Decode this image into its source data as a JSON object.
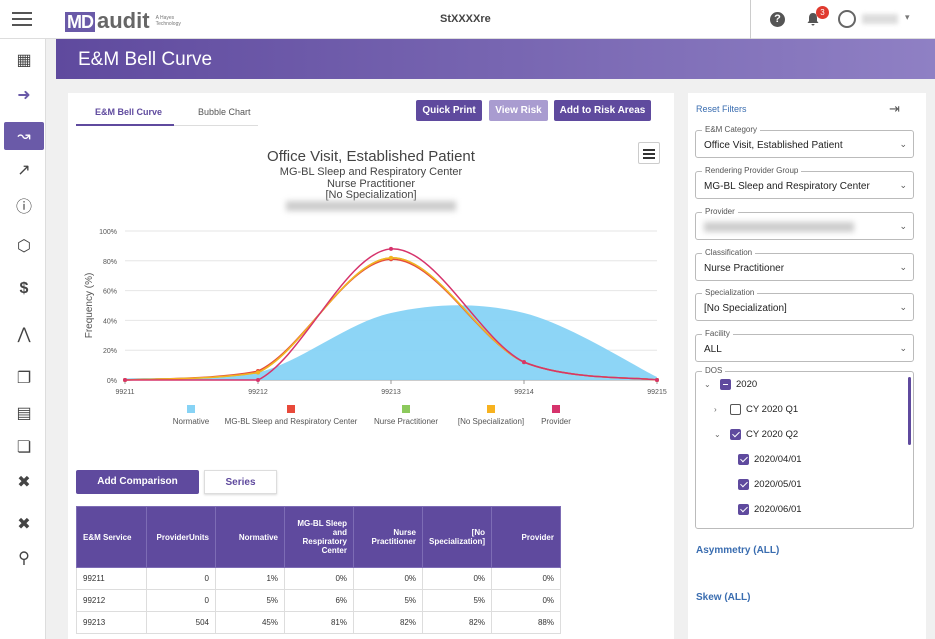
{
  "app": {
    "logo_md": "MD",
    "logo_audit": "audit",
    "logo_sub": "A Hayes Technology",
    "title": "StXXXXre",
    "notification_count": "3"
  },
  "page": {
    "title": "E&M Bell Curve"
  },
  "tabs": [
    {
      "label": "E&M Bell Curve"
    },
    {
      "label": "Bubble Chart"
    }
  ],
  "toolbar": {
    "quick_print": "Quick Print",
    "view_risk": "View Risk",
    "add_risk": "Add to Risk Areas"
  },
  "chart_data": {
    "type": "line",
    "title": "Office Visit, Established Patient",
    "subtitles": [
      "MG-BL Sleep and Respiratory Center",
      "Nurse Practitioner",
      "[No Specialization]"
    ],
    "ylabel": "Frequency (%)",
    "xlabel": "",
    "ylim": [
      0,
      100
    ],
    "yticks": [
      "0%",
      "20%",
      "40%",
      "60%",
      "80%",
      "100%"
    ],
    "categories": [
      "99211",
      "99212",
      "99213",
      "99214",
      "99215"
    ],
    "series": [
      {
        "name": "Normative",
        "type": "area",
        "color": "#87d3f5",
        "values": [
          1,
          5,
          45,
          45,
          2
        ]
      },
      {
        "name": "MG-BL Sleep and Respiratory Center",
        "color": "#e8493a",
        "values": [
          0,
          6,
          81,
          12,
          0
        ]
      },
      {
        "name": "Nurse Practitioner",
        "color": "#8cc95c",
        "values": [
          0,
          5,
          82,
          12,
          0
        ]
      },
      {
        "name": "[No Specialization]",
        "color": "#f7b21f",
        "values": [
          0,
          5,
          82,
          12,
          0
        ]
      },
      {
        "name": "Provider",
        "color": "#d6336c",
        "values": [
          0,
          0,
          88,
          12,
          0
        ]
      }
    ]
  },
  "buttons": {
    "add_comparison": "Add Comparison",
    "series": "Series"
  },
  "table": {
    "headers": [
      "E&M Service",
      "ProviderUnits",
      "Normative",
      "MG-BL Sleep and Respiratory Center",
      "Nurse Practitioner",
      "[No Specialization]",
      "Provider"
    ],
    "rows": [
      [
        "99211",
        "0",
        "1%",
        "0%",
        "0%",
        "0%",
        "0%"
      ],
      [
        "99212",
        "0",
        "5%",
        "6%",
        "5%",
        "5%",
        "0%"
      ],
      [
        "99213",
        "504",
        "45%",
        "81%",
        "82%",
        "82%",
        "88%"
      ]
    ]
  },
  "filters": {
    "reset": "Reset Filters",
    "fields": [
      {
        "label": "E&M Category",
        "value": "Office Visit, Established Patient"
      },
      {
        "label": "Rendering Provider Group",
        "value": "MG-BL Sleep and Respiratory Center"
      },
      {
        "label": "Provider",
        "value": ""
      },
      {
        "label": "Classification",
        "value": "Nurse Practitioner"
      },
      {
        "label": "Specialization",
        "value": "[No Specialization]"
      },
      {
        "label": "Facility",
        "value": "ALL"
      }
    ],
    "dos_label": "DOS",
    "dos_tree": [
      {
        "label": "2020",
        "state": "partial",
        "arrow": "down"
      },
      {
        "label": "CY 2020 Q1",
        "state": "unchecked",
        "arrow": "right"
      },
      {
        "label": "CY 2020 Q2",
        "state": "checked",
        "arrow": "down"
      },
      {
        "label": "2020/04/01",
        "state": "checked",
        "arrow": ""
      },
      {
        "label": "2020/05/01",
        "state": "checked",
        "arrow": ""
      },
      {
        "label": "2020/06/01",
        "state": "checked",
        "arrow": ""
      }
    ],
    "asymmetry": "Asymmetry (ALL)",
    "skew": "Skew (ALL)"
  }
}
